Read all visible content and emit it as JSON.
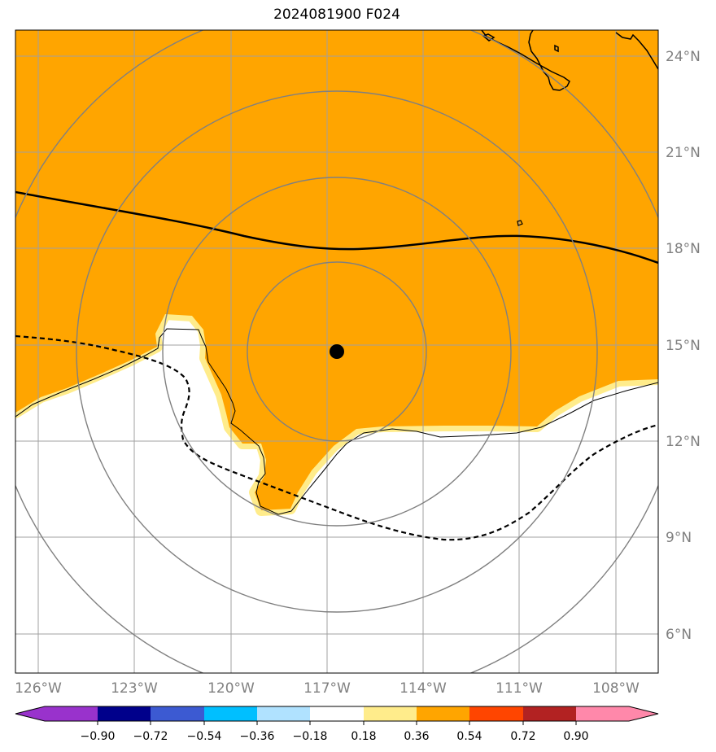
{
  "title": "2024081900 F024",
  "map": {
    "lon_range": [
      -127,
      -106.5
    ],
    "lat_range": [
      4.9,
      24.9
    ],
    "lon_ticks": [
      "126°W",
      "123°W",
      "120°W",
      "117°W",
      "114°W",
      "111°W",
      "108°W"
    ],
    "lat_ticks": [
      "24°N",
      "21°N",
      "18°N",
      "15°N",
      "12°N",
      "9°N",
      "6°N"
    ],
    "center_marker": {
      "lon": -116.7,
      "lat": 14.8
    },
    "range_rings_count": 4,
    "fill_color": "#ffa500",
    "fill_color_label": "0.36 – 0.54",
    "edge_color": "#ffec8b",
    "gridlines": true
  },
  "colorbar": {
    "ticks": [
      "−0.90",
      "−0.72",
      "−0.54",
      "−0.36",
      "−0.18",
      "0.18",
      "0.36",
      "0.54",
      "0.72",
      "0.90"
    ],
    "colors": [
      "#9932cc",
      "#00008b",
      "#3c5ad2",
      "#00bfff",
      "#b0e2ff",
      "#ffffff",
      "#ffec8b",
      "#ffa500",
      "#ff4500",
      "#b22222",
      "#ff88aa"
    ],
    "extend": "both"
  }
}
